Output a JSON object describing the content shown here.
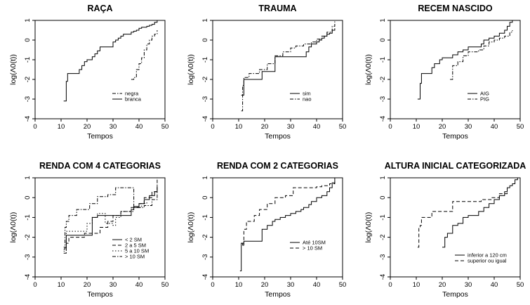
{
  "figure": {
    "ylabel": "log(Λ0(t))",
    "xlabel": "Tempos"
  },
  "chart_data": [
    {
      "type": "line",
      "title": "RAÇA",
      "xlabel": "Tempos",
      "ylabel": "log(Λ0(t))",
      "xlim": [
        0,
        50
      ],
      "ylim": [
        -4,
        1
      ],
      "xticks": [
        0,
        10,
        20,
        30,
        40,
        50
      ],
      "yticks": [
        -4,
        -3,
        -2,
        -1,
        0,
        1
      ],
      "legend_position": "bottom-right",
      "series": [
        {
          "name": "branca",
          "style": "solid",
          "x": [
            11,
            12,
            12.5,
            15,
            17,
            18,
            19,
            20,
            22,
            23,
            24,
            25,
            30,
            31,
            32,
            33,
            34,
            35,
            37,
            38,
            39,
            40,
            41,
            43,
            44,
            45,
            46,
            47,
            48,
            49
          ],
          "y": [
            -3.1,
            -2.1,
            -1.7,
            -1.7,
            -1.5,
            -1.3,
            -1.1,
            -1.0,
            -0.85,
            -0.7,
            -0.55,
            -0.35,
            -0.1,
            0.0,
            0.1,
            0.2,
            0.3,
            0.3,
            0.4,
            0.45,
            0.5,
            0.6,
            0.65,
            0.7,
            0.75,
            0.8,
            0.9,
            1.0,
            1.1,
            1.2
          ]
        },
        {
          "name": "negra",
          "style": "dashdot",
          "x": [
            37,
            38,
            39,
            40,
            41,
            42,
            43,
            44,
            45,
            46,
            47
          ],
          "y": [
            -2.0,
            -1.9,
            -1.5,
            -1.2,
            -0.9,
            -0.5,
            -0.2,
            0.0,
            0.2,
            0.3,
            0.5
          ]
        }
      ]
    },
    {
      "type": "line",
      "title": "TRAUMA",
      "xlabel": "Tempos",
      "ylabel": "log(Λ0(t))",
      "xlim": [
        0,
        50
      ],
      "ylim": [
        -4,
        1
      ],
      "xticks": [
        0,
        10,
        20,
        30,
        40,
        50
      ],
      "yticks": [
        -4,
        -3,
        -2,
        -1,
        0,
        1
      ],
      "legend_position": "bottom-right",
      "series": [
        {
          "name": "sim",
          "style": "solid",
          "x": [
            11,
            12,
            19,
            24,
            35,
            36,
            37,
            38,
            40,
            41,
            42,
            43,
            44,
            45,
            46,
            47
          ],
          "y": [
            -2.8,
            -2.0,
            -1.6,
            -0.85,
            -0.85,
            -0.6,
            -0.35,
            -0.2,
            -0.1,
            0.0,
            0.1,
            0.2,
            0.3,
            0.35,
            0.5,
            0.6
          ]
        },
        {
          "name": "nao",
          "style": "dashdot",
          "x": [
            11,
            11.5,
            12,
            14,
            18,
            21,
            24,
            27,
            30,
            32,
            35,
            38,
            40,
            42,
            44,
            46,
            47
          ],
          "y": [
            -3.6,
            -2.3,
            -1.9,
            -1.7,
            -1.5,
            -1.2,
            -0.8,
            -0.6,
            -0.4,
            -0.3,
            -0.2,
            -0.1,
            0.05,
            0.2,
            0.4,
            0.7,
            1.1
          ]
        }
      ]
    },
    {
      "type": "line",
      "title": "RECEM NASCIDO",
      "xlabel": "Tempos",
      "ylabel": "log(Λ0(t))",
      "xlim": [
        0,
        50
      ],
      "ylim": [
        -4,
        1
      ],
      "xticks": [
        0,
        10,
        20,
        30,
        40,
        50
      ],
      "yticks": [
        -4,
        -3,
        -2,
        -1,
        0,
        1
      ],
      "legend_position": "bottom-right",
      "series": [
        {
          "name": "AIG",
          "style": "solid",
          "x": [
            10.5,
            11.5,
            12,
            15,
            16,
            17,
            19,
            20,
            24,
            26,
            28,
            30,
            34,
            35,
            36,
            38,
            40,
            42,
            44,
            45,
            46,
            47
          ],
          "y": [
            -3.0,
            -2.2,
            -1.7,
            -1.7,
            -1.4,
            -1.2,
            -1.0,
            -0.9,
            -0.75,
            -0.6,
            -0.5,
            -0.35,
            -0.35,
            -0.2,
            0.0,
            0.1,
            0.2,
            0.35,
            0.5,
            0.7,
            0.9,
            1.1
          ]
        },
        {
          "name": "PIG",
          "style": "dashdot",
          "x": [
            23,
            24,
            26,
            28,
            30,
            34,
            36,
            38,
            40,
            42,
            44,
            46,
            47
          ],
          "y": [
            -2.0,
            -1.3,
            -1.1,
            -0.8,
            -0.6,
            -0.5,
            -0.3,
            -0.1,
            0.0,
            0.1,
            0.2,
            0.4,
            0.5
          ]
        }
      ]
    },
    {
      "type": "line",
      "title": "RENDA COM 4 CATEGORIAS",
      "xlabel": "Tempos",
      "ylabel": "log(Λ0(t))",
      "xlim": [
        0,
        50
      ],
      "ylim": [
        -4,
        1
      ],
      "xticks": [
        0,
        10,
        20,
        30,
        40,
        50
      ],
      "yticks": [
        -4,
        -3,
        -2,
        -1,
        0,
        1
      ],
      "legend_position": "bottom-right",
      "series": [
        {
          "name": "< 2 SM",
          "style": "solid",
          "x": [
            11,
            12,
            22,
            24,
            34,
            37,
            38,
            40,
            42,
            44,
            46,
            47
          ],
          "y": [
            -2.5,
            -1.9,
            -1.0,
            -0.9,
            -0.9,
            -0.6,
            -0.45,
            -0.3,
            -0.1,
            0.1,
            0.3,
            0.5
          ]
        },
        {
          "name": "2 a 5 SM",
          "style": "dashed",
          "x": [
            11,
            12,
            13,
            17,
            19,
            25,
            28,
            30,
            33,
            37,
            40,
            42,
            45,
            47
          ],
          "y": [
            -2.8,
            -2.3,
            -2.0,
            -2.0,
            -1.8,
            -1.5,
            -1.2,
            -0.9,
            -0.7,
            -0.5,
            -0.3,
            0.0,
            0.3,
            0.6
          ]
        },
        {
          "name": "5 a 10 SM",
          "style": "dotted",
          "x": [
            11,
            12,
            20,
            22,
            24,
            27,
            30,
            31,
            33,
            35,
            38,
            41,
            43
          ],
          "y": [
            -2.7,
            -1.7,
            -1.3,
            -1.0,
            -0.8,
            -1.3,
            -1.4,
            -1.0,
            -0.7,
            -0.7,
            -0.5,
            -0.3,
            -0.2
          ]
        },
        {
          "name": "> 10 SM",
          "style": "dashdot",
          "x": [
            11,
            11.5,
            12,
            13,
            16,
            21,
            24,
            28,
            31,
            37,
            38,
            42,
            45,
            47
          ],
          "y": [
            -2.6,
            -1.5,
            -1.2,
            -0.9,
            -0.6,
            -0.3,
            0.05,
            0.15,
            0.5,
            0.5,
            -0.5,
            -0.4,
            -0.1,
            1.1
          ]
        }
      ]
    },
    {
      "type": "line",
      "title": "RENDA COM 2 CATEGORIAS",
      "xlabel": "Tempos",
      "ylabel": "log(Λ0(t))",
      "xlim": [
        0,
        50
      ],
      "ylim": [
        -4,
        1
      ],
      "xticks": [
        0,
        10,
        20,
        30,
        40,
        50
      ],
      "yticks": [
        -4,
        -3,
        -2,
        -1,
        0,
        1
      ],
      "legend_position": "bottom-right",
      "series": [
        {
          "name": "Até 10SM",
          "style": "solid",
          "x": [
            10.5,
            11,
            11.5,
            12,
            19,
            21,
            23,
            24,
            26,
            28,
            30,
            32,
            34,
            35,
            37,
            38,
            40,
            42,
            44,
            45,
            46,
            47
          ],
          "y": [
            -3.7,
            -2.3,
            -2.4,
            -2.2,
            -1.6,
            -1.4,
            -1.2,
            -1.1,
            -1.0,
            -0.9,
            -0.8,
            -0.7,
            -0.6,
            -0.5,
            -0.35,
            -0.2,
            0.0,
            0.1,
            0.3,
            0.5,
            0.75,
            1.1
          ]
        },
        {
          "name": "> 10 SM",
          "style": "dashed",
          "x": [
            11,
            12,
            13,
            16,
            18,
            21,
            24,
            28,
            31,
            37,
            40,
            42,
            45,
            47
          ],
          "y": [
            -2.3,
            -1.6,
            -1.2,
            -0.9,
            -0.6,
            -0.3,
            0.0,
            0.1,
            0.5,
            0.5,
            0.55,
            0.6,
            0.7,
            0.8
          ]
        }
      ]
    },
    {
      "type": "line",
      "title": "ALTURA INICIAL CATEGORIZADA",
      "xlabel": "Tempos",
      "ylabel": "log(Λ0(t))",
      "xlim": [
        0,
        50
      ],
      "ylim": [
        -4,
        1
      ],
      "xticks": [
        0,
        10,
        20,
        30,
        40,
        50
      ],
      "yticks": [
        -4,
        -3,
        -2,
        -1,
        0,
        1
      ],
      "legend_position": "bottom-right",
      "series": [
        {
          "name": "inferior a 120 cm",
          "style": "solid",
          "x": [
            20,
            21,
            22,
            24,
            26,
            28,
            30,
            34,
            36,
            38,
            40,
            42,
            44,
            45,
            46,
            47,
            48,
            49
          ],
          "y": [
            -2.5,
            -2.0,
            -1.8,
            -1.4,
            -1.3,
            -1.0,
            -0.9,
            -0.7,
            -0.5,
            -0.3,
            -0.1,
            0.1,
            0.3,
            0.5,
            0.6,
            0.7,
            0.9,
            1.1
          ]
        },
        {
          "name": "superior ou igual",
          "style": "dashed",
          "x": [
            10.5,
            11,
            11.5,
            12,
            13,
            16,
            23,
            24,
            32,
            35,
            39,
            42,
            45
          ],
          "y": [
            -2.5,
            -1.5,
            -1.4,
            -1.0,
            -1.0,
            -0.7,
            -0.7,
            -0.2,
            -0.2,
            -0.1,
            0.0,
            0.2,
            0.3
          ]
        }
      ]
    }
  ]
}
